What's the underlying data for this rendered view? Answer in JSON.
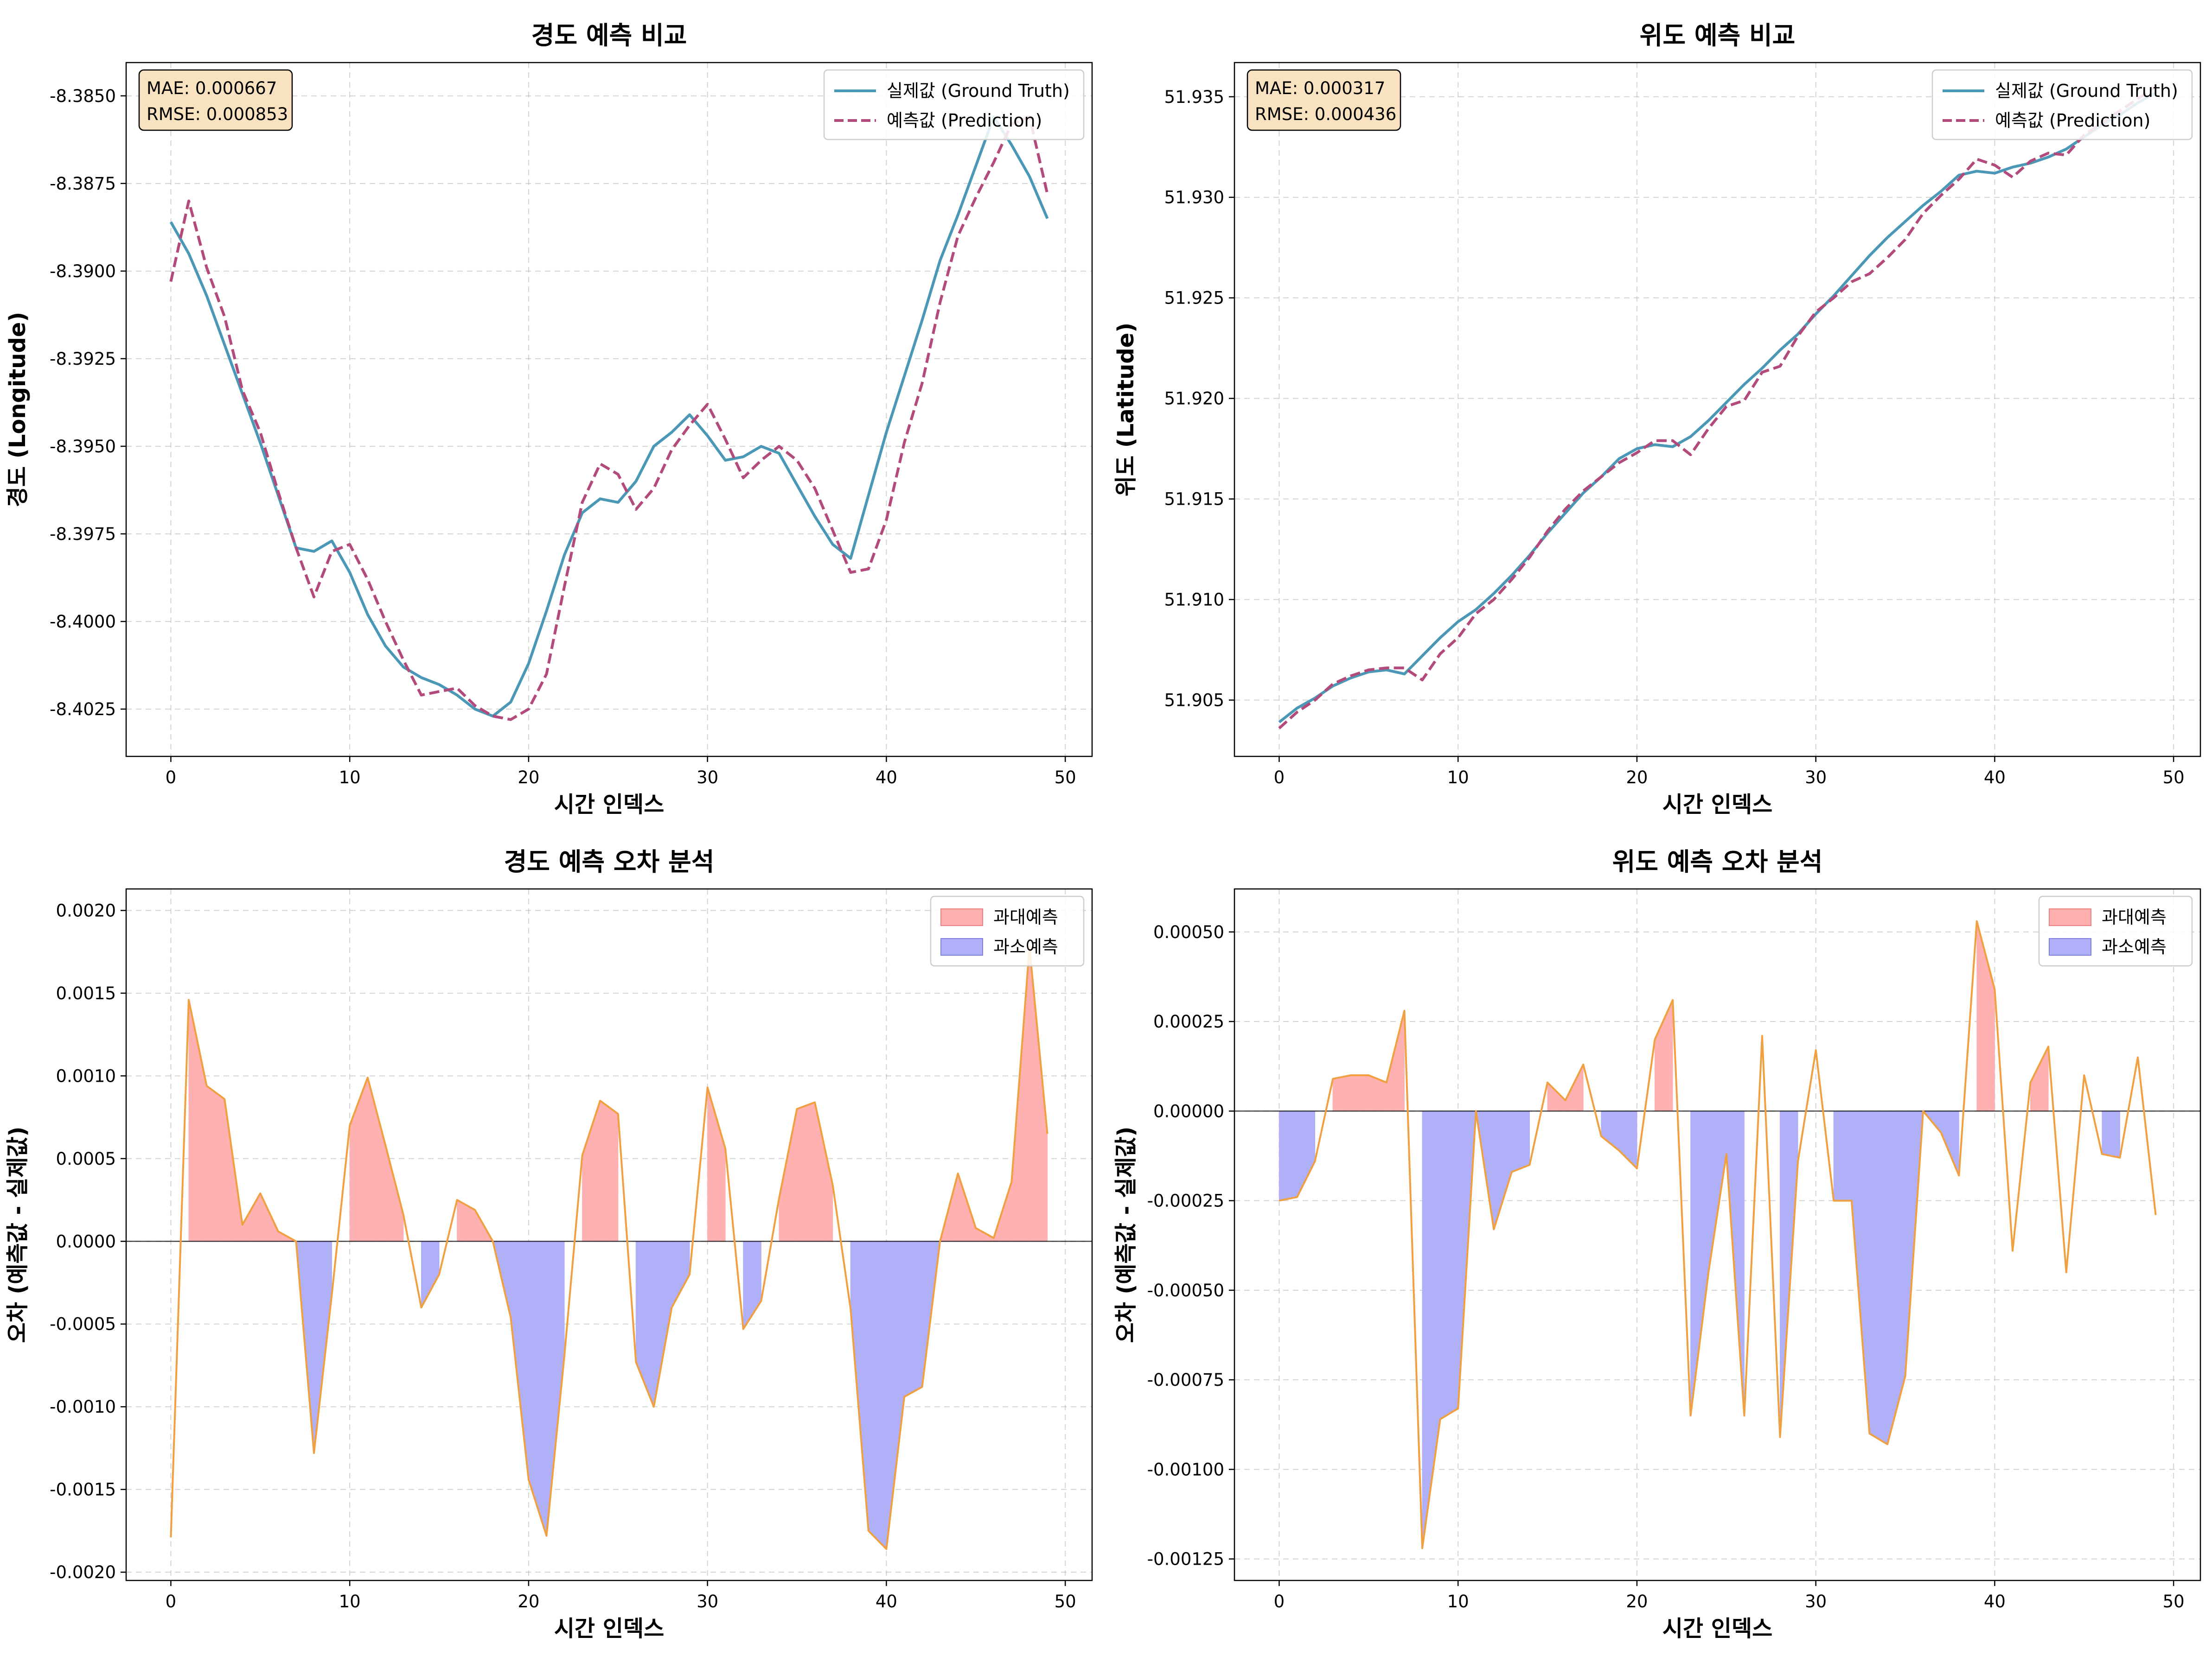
{
  "chart_data": [
    {
      "type": "line",
      "title": "경도 예측 비교",
      "xlabel": "시간 인덱스",
      "ylabel": "경도 (Longitude)",
      "xlim": [
        -2.5,
        51.5
      ],
      "ylim": [
        -8.40385,
        -8.38405
      ],
      "xticks": [
        0,
        10,
        20,
        30,
        40,
        50
      ],
      "yticks": [
        -8.385,
        -8.3875,
        -8.39,
        -8.3925,
        -8.395,
        -8.3975,
        -8.4,
        -8.4025
      ],
      "ytick_labels": [
        "-8.3850",
        "-8.3875",
        "-8.3900",
        "-8.3925",
        "-8.3950",
        "-8.3975",
        "-8.4000",
        "-8.4025"
      ],
      "legend_position": "top-right",
      "metrics": {
        "mae": "MAE: 0.000667",
        "rmse": "RMSE: 0.000853"
      },
      "colors": {
        "actual": "#4a98b6",
        "predicted": "#b24a7c",
        "metric_box": "#f8e2c0"
      },
      "series": [
        {
          "name": "실제값 (Ground Truth)",
          "style": "solid",
          "values": [
            -8.3886,
            -8.3895,
            -8.3907,
            -8.3921,
            -8.3935,
            -8.3949,
            -8.3964,
            -8.3979,
            -8.398,
            -8.3977,
            -8.3986,
            -8.3998,
            -8.4007,
            -8.4013,
            -8.4016,
            -8.4018,
            -8.4021,
            -8.4025,
            -8.4027,
            -8.4023,
            -8.4012,
            -8.3997,
            -8.3981,
            -8.3969,
            -8.3965,
            -8.3966,
            -8.396,
            -8.395,
            -8.3946,
            -8.3941,
            -8.3947,
            -8.3954,
            -8.3953,
            -8.395,
            -8.3952,
            -8.3961,
            -8.397,
            -8.3978,
            -8.3982,
            -8.3964,
            -8.3946,
            -8.393,
            -8.3914,
            -8.3897,
            -8.3884,
            -8.387,
            -8.3856,
            -8.3864,
            -8.3873,
            -8.3885
          ]
        },
        {
          "name": "예측값 (Prediction)",
          "style": "dashed",
          "values": [
            -8.3903,
            -8.388,
            -8.3899,
            -8.3913,
            -8.3934,
            -8.3946,
            -8.3963,
            -8.3979,
            -8.3993,
            -8.398,
            -8.3978,
            -8.3988,
            -8.4,
            -8.4011,
            -8.4021,
            -8.402,
            -8.4019,
            -8.4024,
            -8.4027,
            -8.4028,
            -8.4025,
            -8.4015,
            -8.399,
            -8.3966,
            -8.3955,
            -8.3958,
            -8.3968,
            -8.3962,
            -8.3951,
            -8.3944,
            -8.3938,
            -8.3948,
            -8.3959,
            -8.3954,
            -8.395,
            -8.3954,
            -8.3962,
            -8.3974,
            -8.3986,
            -8.3985,
            -8.3971,
            -8.3949,
            -8.3932,
            -8.3909,
            -8.389,
            -8.3879,
            -8.3869,
            -8.3858,
            -8.3856,
            -8.3878
          ]
        }
      ]
    },
    {
      "type": "line",
      "title": "위도 예측 비교",
      "xlabel": "시간 인덱스",
      "ylabel": "위도 (Latitude)",
      "xlim": [
        -2.5,
        51.5
      ],
      "ylim": [
        51.9022,
        51.9367
      ],
      "xticks": [
        0,
        10,
        20,
        30,
        40,
        50
      ],
      "yticks": [
        51.905,
        51.91,
        51.915,
        51.92,
        51.925,
        51.93,
        51.935
      ],
      "ytick_labels": [
        "51.905",
        "51.910",
        "51.915",
        "51.920",
        "51.925",
        "51.930",
        "51.935"
      ],
      "legend_position": "top-right",
      "metrics": {
        "mae": "MAE: 0.000317",
        "rmse": "RMSE: 0.000436"
      },
      "colors": {
        "actual": "#4a98b6",
        "predicted": "#b24a7c",
        "metric_box": "#f8e2c0"
      },
      "series": [
        {
          "name": "실제값 (Ground Truth)",
          "style": "solid",
          "values": [
            51.9039,
            51.9046,
            51.9051,
            51.9057,
            51.9061,
            51.9064,
            51.9065,
            51.9063,
            51.9072,
            51.9081,
            51.9089,
            51.9095,
            51.9103,
            51.9112,
            51.9122,
            51.9133,
            51.9143,
            51.9153,
            51.9161,
            51.917,
            51.9175,
            51.9177,
            51.9176,
            51.9181,
            51.9189,
            51.9198,
            51.9207,
            51.9215,
            51.9224,
            51.9232,
            51.9242,
            51.9251,
            51.9261,
            51.9271,
            51.928,
            51.9288,
            51.9296,
            51.9303,
            51.9311,
            51.9313,
            51.9312,
            51.9315,
            51.9317,
            51.932,
            51.9324,
            51.933,
            51.9336,
            51.9341,
            51.9347,
            51.9352
          ]
        },
        {
          "name": "예측값 (Prediction)",
          "style": "dashed",
          "values": [
            51.9036,
            51.9044,
            51.905,
            51.9058,
            51.9062,
            51.9065,
            51.9066,
            51.9066,
            51.906,
            51.9073,
            51.9081,
            51.9093,
            51.91,
            51.911,
            51.9121,
            51.9134,
            51.9145,
            51.9154,
            51.9161,
            51.9168,
            51.9173,
            51.9179,
            51.9179,
            51.9172,
            51.9185,
            51.9196,
            51.9199,
            51.9213,
            51.9216,
            51.9231,
            51.9243,
            51.925,
            51.9258,
            51.9262,
            51.927,
            51.9279,
            51.9292,
            51.9301,
            51.9309,
            51.9319,
            51.9316,
            51.931,
            51.9318,
            51.9322,
            51.9321,
            51.9331,
            51.9337,
            51.9343,
            51.9349,
            51.9355
          ]
        }
      ]
    },
    {
      "type": "area",
      "title": "경도 예측 오차 분석",
      "xlabel": "시간 인덱스",
      "ylabel": "오차 (예측값 - 실제값)",
      "xlim": [
        -2.5,
        51.5
      ],
      "ylim": [
        -0.00205,
        0.00213
      ],
      "xticks": [
        0,
        10,
        20,
        30,
        40,
        50
      ],
      "yticks": [
        0.002,
        0.0015,
        0.001,
        0.0005,
        0.0,
        -0.0005,
        -0.001,
        -0.0015,
        -0.002
      ],
      "ytick_labels": [
        "0.0020",
        "0.0015",
        "0.0010",
        "0.0005",
        "0.0000",
        "-0.0005",
        "-0.0010",
        "-0.0015",
        "-0.0020"
      ],
      "legend_position": "top-right",
      "colors": {
        "line": "#f0a040",
        "positive_fill": "#ffb0b0",
        "negative_fill": "#b0b0f8"
      },
      "legend": [
        "과대예측",
        "과소예측"
      ],
      "series": [
        {
          "name": "오차",
          "values": [
            -0.00179,
            0.00146,
            0.00094,
            0.00086,
            0.0001,
            0.00029,
            6e-05,
            0.0,
            -0.00128,
            -0.00032,
            0.0007,
            0.00099,
            0.00058,
            0.00016,
            -0.0004,
            -0.0002,
            0.00025,
            0.00019,
            0.0,
            -0.00046,
            -0.00144,
            -0.00178,
            -0.00069,
            0.00052,
            0.00085,
            0.00077,
            -0.00073,
            -0.001,
            -0.0004,
            -0.0002,
            0.00093,
            0.00056,
            -0.00053,
            -0.00036,
            0.00026,
            0.0008,
            0.00084,
            0.00034,
            -0.00041,
            -0.00175,
            -0.00186,
            -0.00094,
            -0.00088,
            0.0,
            0.00041,
            8e-05,
            2e-05,
            0.00036,
            0.00178,
            0.00065
          ]
        }
      ]
    },
    {
      "type": "area",
      "title": "위도 예측 오차 분석",
      "xlabel": "시간 인덱스",
      "ylabel": "오차 (예측값 - 실제값)",
      "xlim": [
        -2.5,
        51.5
      ],
      "ylim": [
        -0.00131,
        0.00062
      ],
      "xticks": [
        0,
        10,
        20,
        30,
        40,
        50
      ],
      "yticks": [
        0.0005,
        0.00025,
        0.0,
        -0.00025,
        -0.0005,
        -0.00075,
        -0.001,
        -0.00125
      ],
      "ytick_labels": [
        "0.00050",
        "0.00025",
        "0.00000",
        "-0.00025",
        "-0.00050",
        "-0.00075",
        "-0.00100",
        "-0.00125"
      ],
      "legend_position": "top-right",
      "colors": {
        "line": "#f0a040",
        "positive_fill": "#ffb0b0",
        "negative_fill": "#b0b0f8"
      },
      "legend": [
        "과대예측",
        "과소예측"
      ],
      "series": [
        {
          "name": "오차",
          "values": [
            -0.00025,
            -0.00024,
            -0.00014,
            9e-05,
            0.0001,
            0.0001,
            8e-05,
            0.00028,
            -0.00122,
            -0.00086,
            -0.00083,
            0.0,
            -0.00033,
            -0.00017,
            -0.00015,
            8e-05,
            3e-05,
            0.00013,
            -7e-05,
            -0.00011,
            -0.00016,
            0.0002,
            0.00031,
            -0.00085,
            -0.00045,
            -0.00012,
            -0.00085,
            0.00021,
            -0.00091,
            -0.00014,
            0.00017,
            -0.00025,
            -0.00025,
            -0.0009,
            -0.00093,
            -0.00074,
            0.0,
            -6e-05,
            -0.00018,
            0.00053,
            0.00034,
            -0.00039,
            8e-05,
            0.00018,
            -0.00045,
            0.0001,
            -0.00012,
            -0.00013,
            0.00015,
            -0.00029
          ]
        }
      ]
    }
  ]
}
